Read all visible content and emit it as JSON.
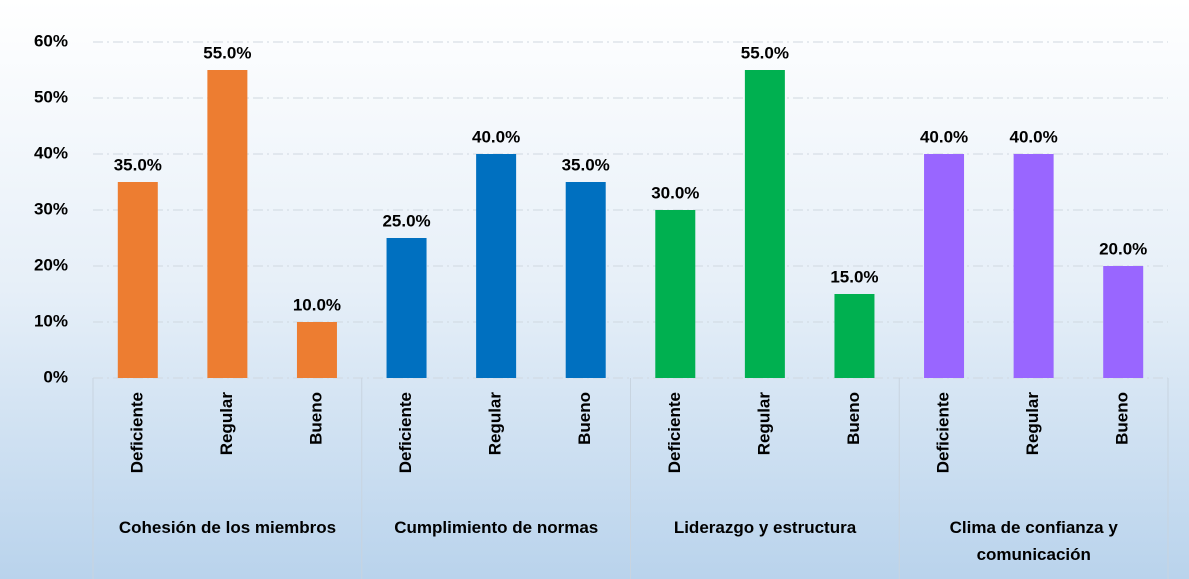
{
  "chart_data": {
    "type": "bar",
    "ylim": [
      0,
      60
    ],
    "yticks": [
      {
        "value": 0,
        "label": "0%"
      },
      {
        "value": 10,
        "label": "10%"
      },
      {
        "value": 20,
        "label": "20%"
      },
      {
        "value": 30,
        "label": "30%"
      },
      {
        "value": 40,
        "label": "40%"
      },
      {
        "value": 50,
        "label": "50%"
      },
      {
        "value": 60,
        "label": "60%"
      }
    ],
    "grid": true,
    "groups": [
      {
        "name": "Cohesión de los miembros",
        "color": "#ed7d31",
        "categories": [
          "Deficiente",
          "Regular",
          "Bueno"
        ],
        "values": [
          35,
          55,
          10
        ],
        "value_labels": [
          "35.0%",
          "55.0%",
          "10.0%"
        ]
      },
      {
        "name": "Cumplimiento de normas",
        "color": "#0070c0",
        "categories": [
          "Deficiente",
          "Regular",
          "Bueno"
        ],
        "values": [
          25,
          40,
          35
        ],
        "value_labels": [
          "25.0%",
          "40.0%",
          "35.0%"
        ]
      },
      {
        "name": "Liderazgo y estructura",
        "color": "#00b050",
        "categories": [
          "Deficiente",
          "Regular",
          "Bueno"
        ],
        "values": [
          30,
          55,
          15
        ],
        "value_labels": [
          "30.0%",
          "55.0%",
          "15.0%"
        ]
      },
      {
        "name": "Clima de confianza y comunicación",
        "color": "#9966ff",
        "categories": [
          "Deficiente",
          "Regular",
          "Bueno"
        ],
        "values": [
          40,
          40,
          20
        ],
        "value_labels": [
          "40.0%",
          "40.0%",
          "20.0%"
        ]
      }
    ]
  }
}
